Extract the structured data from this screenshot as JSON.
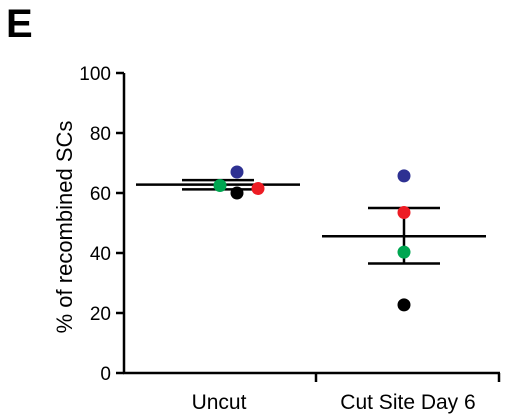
{
  "panel_label": "E",
  "chart_data": {
    "type": "scatter",
    "title": "",
    "xlabel": "",
    "ylabel": "% of recombined SCs",
    "ylim": [
      0,
      100
    ],
    "yticks": [
      0,
      20,
      40,
      60,
      80,
      100
    ],
    "categories": [
      "Uncut",
      "Cut Site Day 6"
    ],
    "colors": {
      "blue": "#2e3192",
      "red": "#ed1c24",
      "green": "#00a651",
      "black": "#000000"
    },
    "points": [
      {
        "category": "Uncut",
        "color": "blue",
        "value": 67.0
      },
      {
        "category": "Uncut",
        "color": "green",
        "value": 62.5
      },
      {
        "category": "Uncut",
        "color": "red",
        "value": 61.5
      },
      {
        "category": "Uncut",
        "color": "black",
        "value": 60.0
      },
      {
        "category": "Cut Site Day 6",
        "color": "blue",
        "value": 65.7
      },
      {
        "category": "Cut Site Day 6",
        "color": "red",
        "value": 53.5
      },
      {
        "category": "Cut Site Day 6",
        "color": "green",
        "value": 40.3
      },
      {
        "category": "Cut Site Day 6",
        "color": "black",
        "value": 22.7
      }
    ],
    "summary": [
      {
        "category": "Uncut",
        "mean": 62.8,
        "sem_upper": 64.3,
        "sem_lower": 61.2
      },
      {
        "category": "Cut Site Day 6",
        "mean": 45.6,
        "sem_upper": 55.0,
        "sem_lower": 36.5
      }
    ]
  }
}
